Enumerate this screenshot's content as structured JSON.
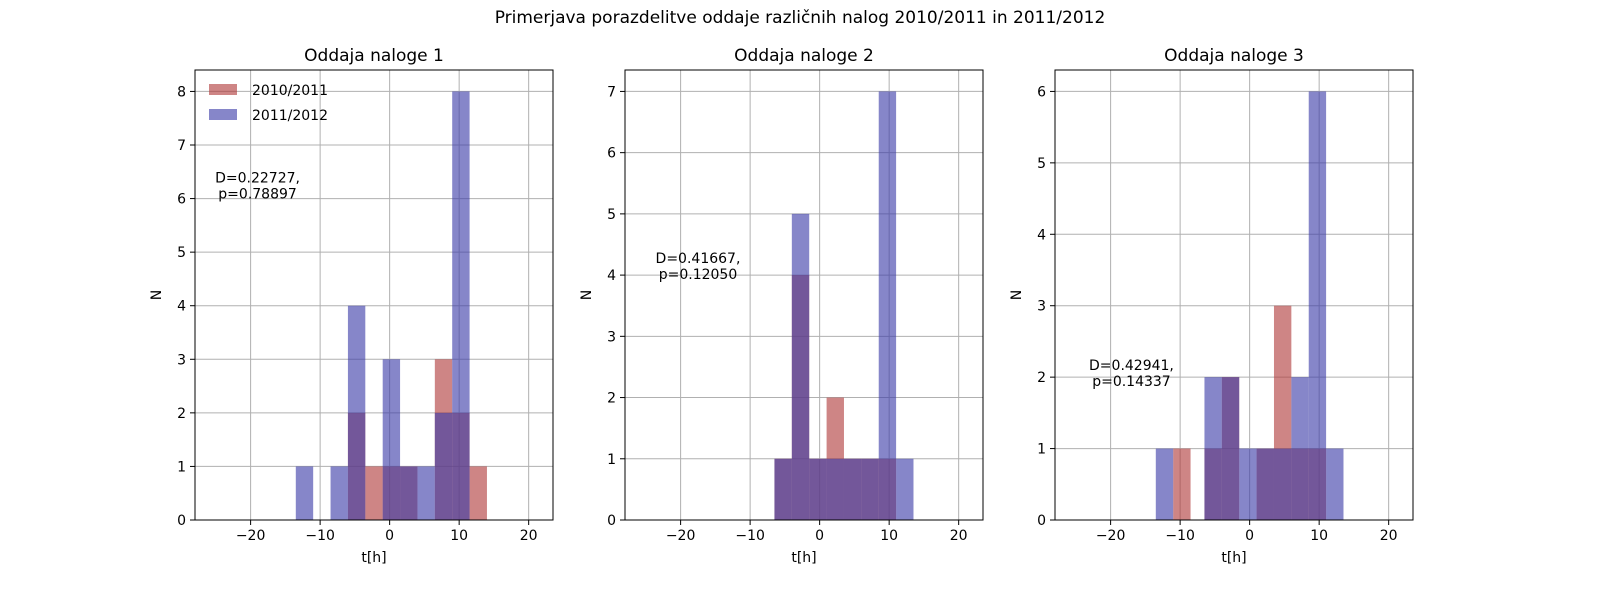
{
  "figure": {
    "suptitle": "Primerjava porazdelitve oddaje različnih nalog 2010/2011 in 2011/2012"
  },
  "colors": {
    "series_2010": "#b03a3a",
    "series_2011": "#3c3ca8",
    "overlap": "#5f3a82",
    "grid": "#b0b0b0"
  },
  "legend": {
    "location": "upper-left",
    "entries": [
      "2010/2011",
      "2011/2012"
    ]
  },
  "chart_data": [
    {
      "type": "bar",
      "title": "Oddaja naloge 1",
      "xlabel": "t[h]",
      "ylabel": "N",
      "xlim": [
        -28,
        23.5
      ],
      "ylim": [
        0,
        8.4
      ],
      "xticks": [
        -20,
        -10,
        0,
        10,
        20
      ],
      "yticks": [
        0,
        1,
        2,
        3,
        4,
        5,
        6,
        7,
        8
      ],
      "grid": true,
      "annotation": {
        "line1": "D=0.22727,",
        "line2": "p=0.78897",
        "x": -19,
        "y": 6.3
      },
      "series": [
        {
          "name": "2010/2011",
          "bins": [
            [
              -6,
              -3.5
            ],
            [
              -3.5,
              -1
            ],
            [
              -1,
              1.5
            ],
            [
              1.5,
              4
            ],
            [
              6.5,
              9
            ],
            [
              9,
              11.5
            ],
            [
              11.5,
              14
            ]
          ],
          "values": [
            2,
            1,
            1,
            1,
            3,
            2,
            1
          ]
        },
        {
          "name": "2011/2012",
          "bins": [
            [
              -13.5,
              -11
            ],
            [
              -8.5,
              -6
            ],
            [
              -6,
              -3.5
            ],
            [
              -1,
              1.5
            ],
            [
              1.5,
              4
            ],
            [
              4,
              6.5
            ],
            [
              6.5,
              9
            ],
            [
              9,
              11.5
            ]
          ],
          "values": [
            1,
            1,
            4,
            3,
            1,
            1,
            2,
            8
          ]
        }
      ]
    },
    {
      "type": "bar",
      "title": "Oddaja naloge 2",
      "xlabel": "t[h]",
      "ylabel": "N",
      "xlim": [
        -28,
        23.5
      ],
      "ylim": [
        0,
        7.35
      ],
      "xticks": [
        -20,
        -10,
        0,
        10,
        20
      ],
      "yticks": [
        0,
        1,
        2,
        3,
        4,
        5,
        6,
        7
      ],
      "grid": true,
      "annotation": {
        "line1": "D=0.41667,",
        "line2": "p=0.12050",
        "x": -17.5,
        "y": 4.2
      },
      "series": [
        {
          "name": "2010/2011",
          "bins": [
            [
              -6.5,
              -4
            ],
            [
              -4,
              -1.5
            ],
            [
              -1.5,
              1
            ],
            [
              1,
              3.5
            ],
            [
              3.5,
              6
            ],
            [
              6,
              8.5
            ],
            [
              8.5,
              11
            ]
          ],
          "values": [
            1,
            4,
            1,
            2,
            1,
            1,
            1
          ]
        },
        {
          "name": "2011/2012",
          "bins": [
            [
              -6.5,
              -4
            ],
            [
              -4,
              -1.5
            ],
            [
              -1.5,
              1
            ],
            [
              1,
              3.5
            ],
            [
              3.5,
              6
            ],
            [
              6,
              8.5
            ],
            [
              8.5,
              11
            ],
            [
              11,
              13.5
            ]
          ],
          "values": [
            1,
            5,
            1,
            1,
            1,
            1,
            7,
            1
          ]
        }
      ]
    },
    {
      "type": "bar",
      "title": "Oddaja naloge 3",
      "xlabel": "t[h]",
      "ylabel": "N",
      "xlim": [
        -28,
        23.5
      ],
      "ylim": [
        0,
        6.3
      ],
      "xticks": [
        -20,
        -10,
        0,
        10,
        20
      ],
      "yticks": [
        0,
        1,
        2,
        3,
        4,
        5,
        6
      ],
      "grid": true,
      "annotation": {
        "line1": "D=0.42941,",
        "line2": "p=0.14337",
        "x": -17,
        "y": 2.1
      },
      "series": [
        {
          "name": "2010/2011",
          "bins": [
            [
              -11,
              -8.5
            ],
            [
              -6.5,
              -4
            ],
            [
              -4,
              -1.5
            ],
            [
              1,
              3.5
            ],
            [
              3.5,
              6
            ],
            [
              6,
              8.5
            ],
            [
              8.5,
              11
            ]
          ],
          "values": [
            1,
            1,
            2,
            1,
            3,
            1,
            1
          ]
        },
        {
          "name": "2011/2012",
          "bins": [
            [
              -13.5,
              -11
            ],
            [
              -6.5,
              -4
            ],
            [
              -4,
              -1.5
            ],
            [
              -1.5,
              1
            ],
            [
              1,
              3.5
            ],
            [
              3.5,
              6
            ],
            [
              6,
              8.5
            ],
            [
              8.5,
              11
            ],
            [
              11,
              13.5
            ]
          ],
          "values": [
            1,
            2,
            2,
            1,
            1,
            1,
            2,
            6,
            1
          ]
        }
      ]
    }
  ]
}
